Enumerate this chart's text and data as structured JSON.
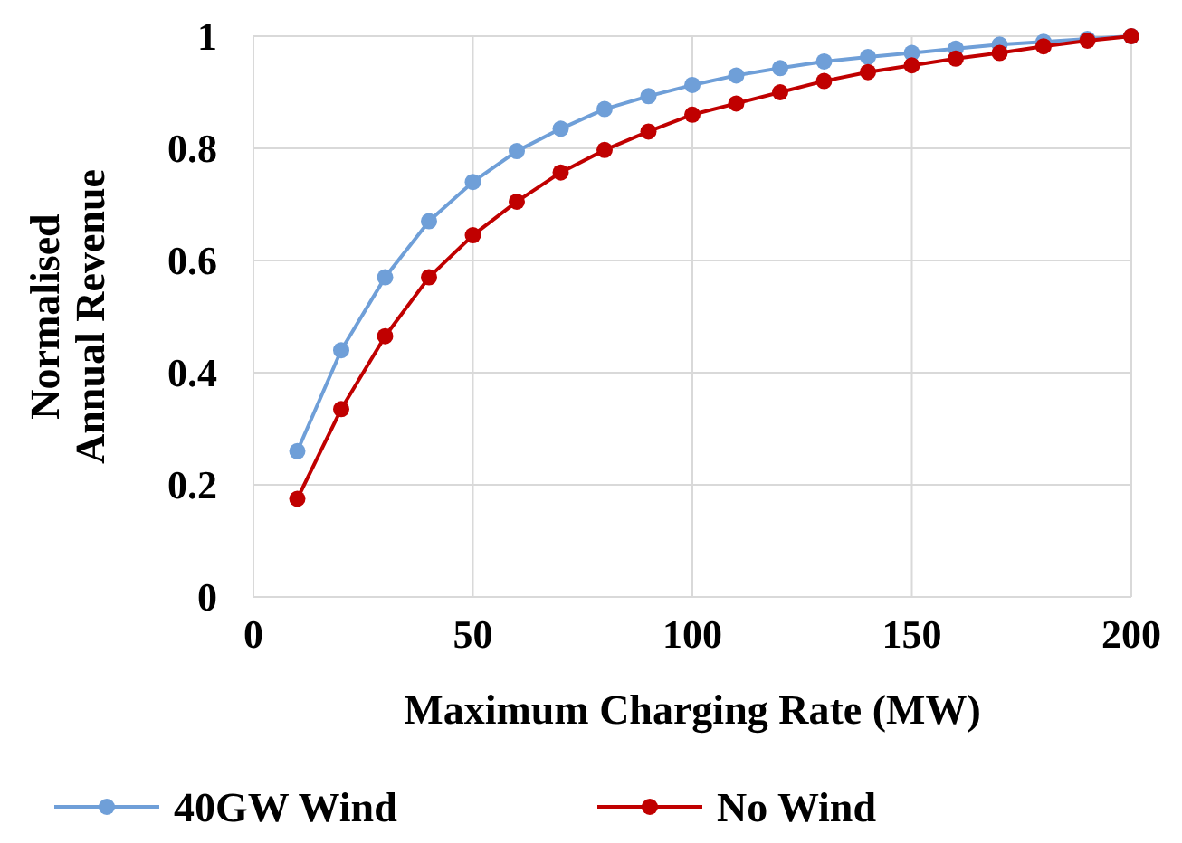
{
  "chart_data": {
    "type": "line",
    "xlabel": "Maximum Charging Rate (MW)",
    "ylabel": "Normalised\nAnnual Revenue",
    "x": [
      10,
      20,
      30,
      40,
      50,
      60,
      70,
      80,
      90,
      100,
      110,
      120,
      130,
      140,
      150,
      160,
      170,
      180,
      190,
      200
    ],
    "series": [
      {
        "name": "40GW Wind",
        "color": "#6f9fd8",
        "values": [
          0.26,
          0.44,
          0.57,
          0.67,
          0.74,
          0.795,
          0.835,
          0.87,
          0.893,
          0.913,
          0.93,
          0.943,
          0.955,
          0.963,
          0.97,
          0.978,
          0.985,
          0.99,
          0.995,
          1
        ]
      },
      {
        "name": "No Wind",
        "color": "#c00000",
        "values": [
          0.175,
          0.335,
          0.465,
          0.57,
          0.645,
          0.705,
          0.757,
          0.797,
          0.83,
          0.86,
          0.88,
          0.9,
          0.92,
          0.936,
          0.948,
          0.96,
          0.97,
          0.982,
          0.992,
          1
        ]
      }
    ],
    "xlim": [
      0,
      200
    ],
    "xticks": [
      0,
      50,
      100,
      150,
      200
    ],
    "ylim": [
      0,
      1
    ],
    "yticks": [
      0,
      0.2,
      0.4,
      0.6,
      0.8,
      1
    ],
    "grid": true,
    "legend": "bottom",
    "marker": "circle",
    "line_style": "solid"
  }
}
